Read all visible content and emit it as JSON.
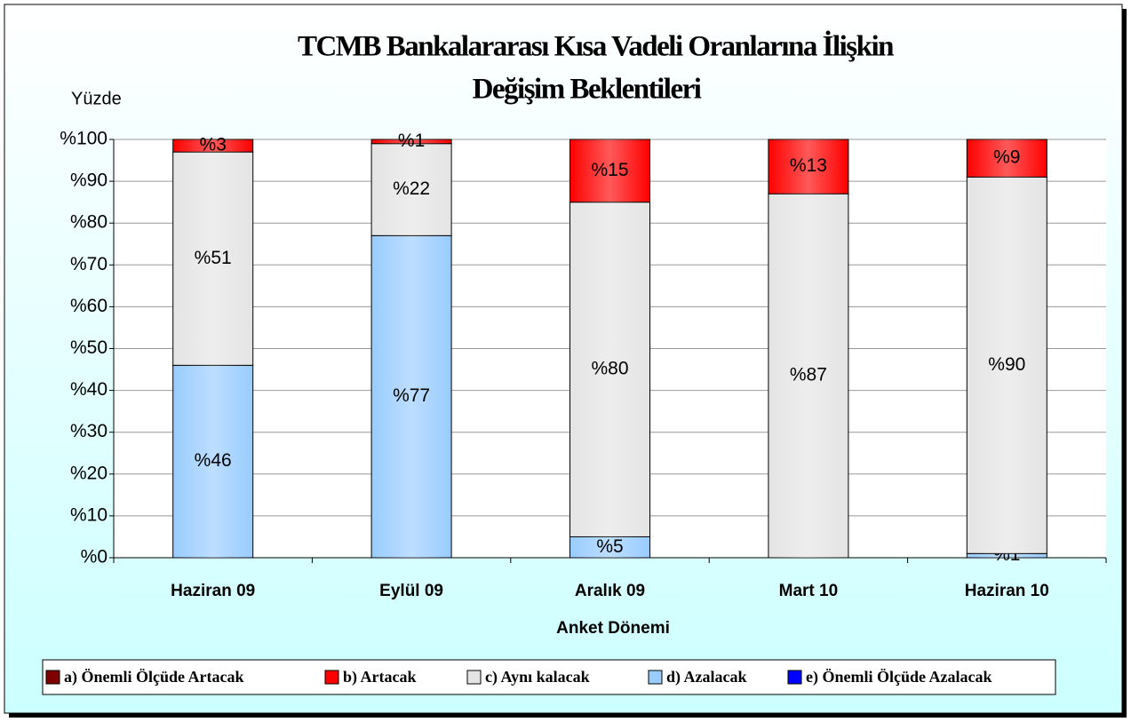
{
  "chart_data": {
    "type": "stacked_bar",
    "title": [
      "TCMB Bankalararası Kısa Vadeli Oranlarına İlişkin",
      "Değişim Beklentileri"
    ],
    "y_label": "Yüzde",
    "x_label": "Anket Dönemi",
    "categories": [
      "Haziran 09",
      "Eylül 09",
      "Aralık 09",
      "Mart 10",
      "Haziran 10"
    ],
    "series": [
      {
        "name": "a) Önemli Ölçüde Artacak",
        "color": "#800000",
        "values": [
          0,
          0,
          0,
          0,
          0
        ],
        "value_labels": [
          null,
          null,
          null,
          null,
          null
        ]
      },
      {
        "name": "b) Artacak",
        "color": "#ff0000",
        "values": [
          3,
          1,
          15,
          13,
          9
        ],
        "value_labels": [
          "%3",
          "%1",
          "%15",
          "%13",
          "%9"
        ]
      },
      {
        "name": "c) Aynı kalacak",
        "color": "#e4e4e4",
        "values": [
          51,
          22,
          80,
          87,
          90
        ],
        "value_labels": [
          "%51",
          "%22",
          "%80",
          "%87",
          "%90"
        ]
      },
      {
        "name": "d)  Azalacak",
        "color": "#99ccff",
        "values": [
          46,
          77,
          5,
          0,
          1
        ],
        "value_labels": [
          "%46",
          "%77",
          "%5",
          null,
          "%1"
        ]
      },
      {
        "name": "e) Önemli Ölçüde Azalacak",
        "color": "#0000ff",
        "values": [
          0,
          0,
          0,
          0,
          0
        ],
        "value_labels": [
          null,
          null,
          null,
          null,
          null
        ]
      }
    ],
    "ylim": [
      0,
      100
    ],
    "yticks": [
      {
        "value": 0,
        "label": "%0"
      },
      {
        "value": 10,
        "label": "%10"
      },
      {
        "value": 20,
        "label": "%20"
      },
      {
        "value": 30,
        "label": "%30"
      },
      {
        "value": 40,
        "label": "%40"
      },
      {
        "value": 50,
        "label": "%50"
      },
      {
        "value": 60,
        "label": "%60"
      },
      {
        "value": 70,
        "label": "%70"
      },
      {
        "value": 80,
        "label": "%80"
      },
      {
        "value": 90,
        "label": "%90"
      },
      {
        "value": 100,
        "label": "%100"
      }
    ],
    "grid": true,
    "legend": "bottom"
  }
}
